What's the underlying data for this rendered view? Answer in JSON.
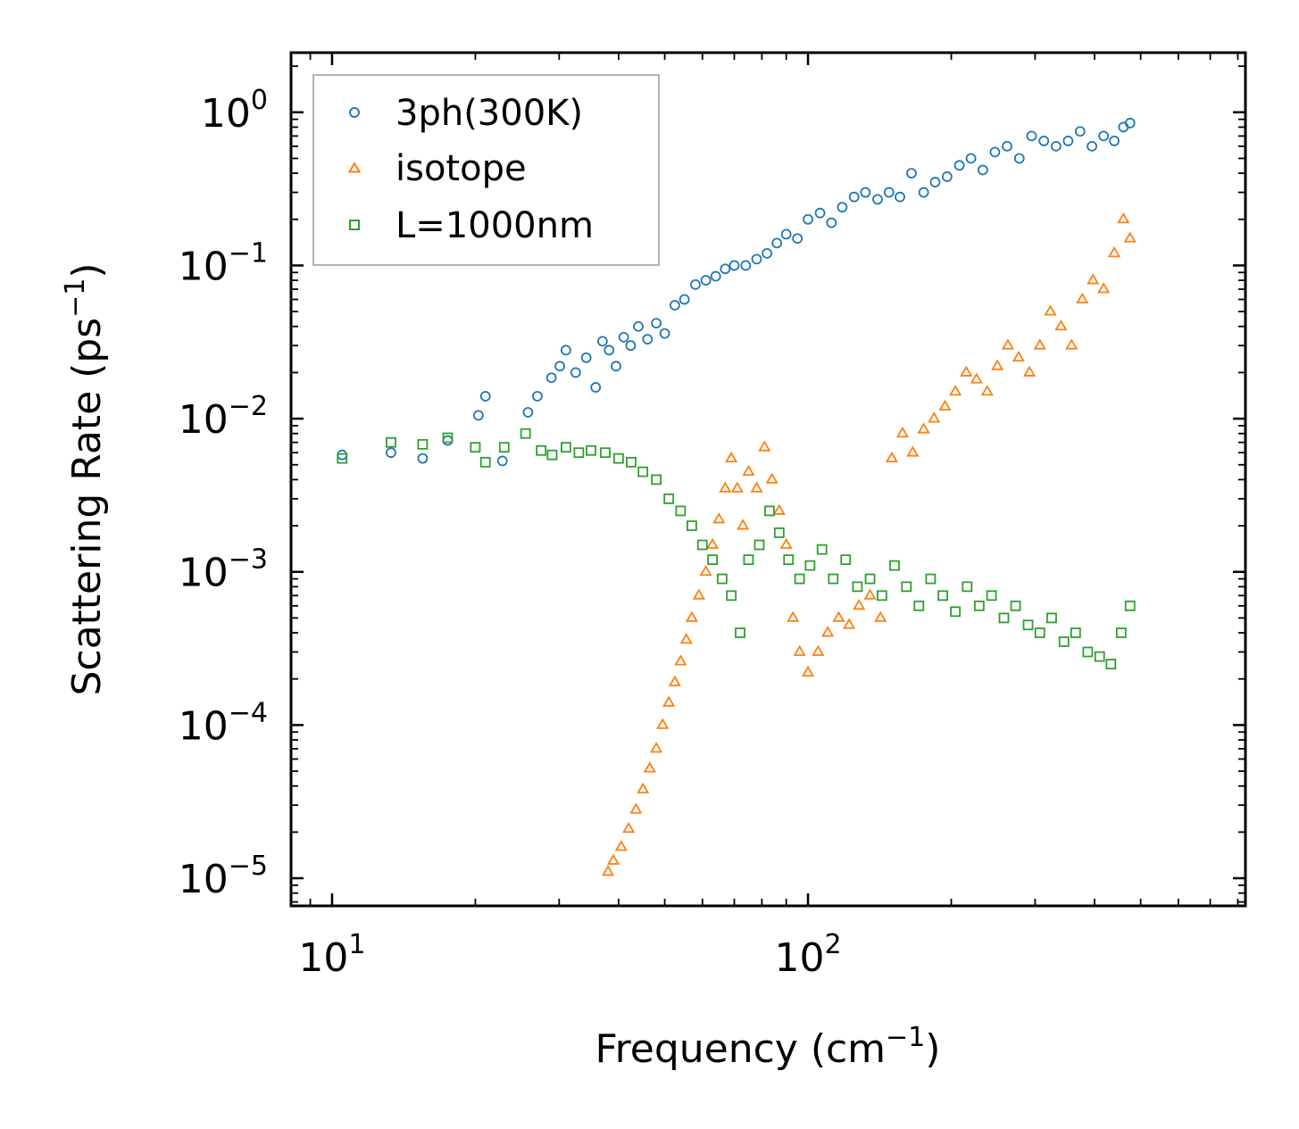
{
  "chart_data": {
    "type": "scatter",
    "xscale": "log",
    "yscale": "log",
    "xlim": [
      8.2,
      830
    ],
    "ylim": [
      6.6e-06,
      2.45
    ],
    "xlabel": {
      "text": "Frequency (cm",
      "sup": "−1",
      "close": ")"
    },
    "ylabel": {
      "text": "Scattering Rate (ps",
      "sup": "−1",
      "close": ")"
    },
    "x_ticks": [
      {
        "value": 10,
        "base": "10",
        "exp": "1"
      },
      {
        "value": 100,
        "base": "10",
        "exp": "2"
      }
    ],
    "y_ticks": [
      {
        "value": 1,
        "base": "10",
        "exp": "0"
      },
      {
        "value": 0.1,
        "base": "10",
        "exp": "−1"
      },
      {
        "value": 0.01,
        "base": "10",
        "exp": "−2"
      },
      {
        "value": 0.001,
        "base": "10",
        "exp": "−3"
      },
      {
        "value": 0.0001,
        "base": "10",
        "exp": "−4"
      },
      {
        "value": 1e-05,
        "base": "10",
        "exp": "−5"
      }
    ],
    "legend_position": "top-left",
    "series": [
      {
        "name": "3ph(300K)",
        "marker": "circle",
        "color": "#1f77b4",
        "x": [
          10.5,
          13.3,
          15.5,
          17.5,
          20.3,
          21.0,
          22.8,
          25.8,
          27.0,
          28.9,
          30.1,
          31.0,
          32.5,
          34.2,
          35.8,
          37.0,
          38.2,
          39.5,
          41.0,
          42.4,
          44.0,
          46.0,
          48.0,
          50.0,
          52.5,
          55.0,
          58.0,
          61.0,
          64.0,
          67.0,
          70.0,
          74.0,
          78.0,
          82.0,
          86.0,
          90.0,
          95.0,
          100.0,
          106.0,
          112.0,
          118.0,
          125.0,
          132.0,
          140.0,
          148.0,
          156.0,
          165.0,
          175.0,
          185.0,
          196.0,
          208.0,
          220.0,
          233.0,
          247.0,
          262.0,
          278.0,
          295.0,
          313.0,
          332.0,
          352.0,
          373.0,
          395.0,
          418.0,
          440.0,
          460.0,
          475.0
        ],
        "y": [
          0.0058,
          0.006,
          0.0055,
          0.0072,
          0.0105,
          0.014,
          0.0053,
          0.011,
          0.014,
          0.0185,
          0.022,
          0.028,
          0.02,
          0.025,
          0.016,
          0.032,
          0.028,
          0.022,
          0.034,
          0.03,
          0.04,
          0.033,
          0.042,
          0.036,
          0.055,
          0.06,
          0.075,
          0.08,
          0.085,
          0.095,
          0.1,
          0.1,
          0.11,
          0.12,
          0.14,
          0.16,
          0.15,
          0.2,
          0.22,
          0.19,
          0.24,
          0.28,
          0.3,
          0.27,
          0.3,
          0.28,
          0.4,
          0.3,
          0.35,
          0.38,
          0.45,
          0.5,
          0.42,
          0.55,
          0.6,
          0.5,
          0.7,
          0.65,
          0.6,
          0.65,
          0.75,
          0.6,
          0.7,
          0.65,
          0.8,
          0.85
        ]
      },
      {
        "name": "isotope",
        "marker": "triangle",
        "color": "#ff7f0e",
        "x": [
          38.0,
          39.0,
          40.5,
          42.0,
          43.5,
          45.0,
          46.5,
          48.0,
          49.5,
          51.0,
          52.5,
          54.0,
          55.5,
          57.0,
          59.0,
          61.0,
          63.0,
          65.0,
          67.0,
          69.0,
          71.0,
          73.0,
          75.0,
          78.0,
          81.0,
          84.0,
          87.0,
          90.0,
          93.0,
          96.0,
          100.0,
          105.0,
          110.0,
          116.0,
          122.0,
          128.0,
          135.0,
          142.0,
          150.0,
          158.0,
          166.0,
          175.0,
          184.0,
          194.0,
          204.0,
          215.0,
          226.0,
          238.0,
          250.0,
          263.0,
          277.0,
          292.0,
          307.0,
          323.0,
          340.0,
          358.0,
          377.0,
          397.0,
          418.0,
          440.0,
          460.0,
          475.0
        ],
        "y": [
          1.1e-05,
          1.3e-05,
          1.6e-05,
          2.1e-05,
          2.8e-05,
          3.8e-05,
          5.2e-05,
          7e-05,
          0.0001,
          0.00014,
          0.00019,
          0.00026,
          0.00036,
          0.0005,
          0.0007,
          0.001,
          0.0015,
          0.0022,
          0.0035,
          0.0055,
          0.0035,
          0.002,
          0.0045,
          0.0035,
          0.0065,
          0.004,
          0.0025,
          0.0015,
          0.0005,
          0.0003,
          0.00022,
          0.0003,
          0.0004,
          0.0005,
          0.00045,
          0.0006,
          0.0007,
          0.0005,
          0.0055,
          0.008,
          0.006,
          0.0085,
          0.01,
          0.012,
          0.015,
          0.02,
          0.018,
          0.015,
          0.022,
          0.03,
          0.025,
          0.02,
          0.03,
          0.05,
          0.04,
          0.03,
          0.06,
          0.08,
          0.07,
          0.12,
          0.2,
          0.15
        ]
      },
      {
        "name": "L=1000nm",
        "marker": "square",
        "color": "#2ca02c",
        "x": [
          10.5,
          13.3,
          15.5,
          17.5,
          20.0,
          21.0,
          23.0,
          25.5,
          27.5,
          29.0,
          31.0,
          33.0,
          35.0,
          37.5,
          40.0,
          42.5,
          45.0,
          48.0,
          51.0,
          54.0,
          57.0,
          60.0,
          63.0,
          66.0,
          69.0,
          72.0,
          75.0,
          79.0,
          83.0,
          87.0,
          91.0,
          96.0,
          101.0,
          107.0,
          113.0,
          120.0,
          127.0,
          135.0,
          143.0,
          152.0,
          161.0,
          171.0,
          181.0,
          192.0,
          204.0,
          216.0,
          229.0,
          243.0,
          258.0,
          273.0,
          290.0,
          307.0,
          325.0,
          345.0,
          365.0,
          387.0,
          410.0,
          433.0,
          455.0,
          475.0
        ],
        "y": [
          0.0055,
          0.007,
          0.0068,
          0.0075,
          0.0065,
          0.0052,
          0.0065,
          0.008,
          0.0062,
          0.0058,
          0.0065,
          0.006,
          0.0062,
          0.006,
          0.0055,
          0.0052,
          0.0045,
          0.004,
          0.003,
          0.0025,
          0.002,
          0.0015,
          0.0012,
          0.0009,
          0.0007,
          0.0004,
          0.0012,
          0.0015,
          0.0025,
          0.0018,
          0.0012,
          0.0009,
          0.0011,
          0.0014,
          0.0009,
          0.0012,
          0.0008,
          0.0009,
          0.0007,
          0.0011,
          0.0008,
          0.0006,
          0.0009,
          0.0007,
          0.00055,
          0.0008,
          0.0006,
          0.0007,
          0.0005,
          0.0006,
          0.00045,
          0.0004,
          0.0005,
          0.00035,
          0.0004,
          0.0003,
          0.00028,
          0.00025,
          0.0004,
          0.0006
        ]
      }
    ]
  }
}
